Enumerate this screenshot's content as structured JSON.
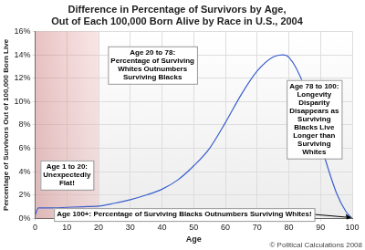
{
  "chart_data": {
    "type": "line",
    "title": [
      "Difference in Percentage of Survivors by Age,",
      "Out of Each 100,000 Born Alive by Race in U.S., 2004"
    ],
    "x_label": "Age",
    "y_label": "Percentage of Survivors Out of 100,000 Born Live",
    "x": [
      0,
      1,
      5,
      10,
      15,
      20,
      25,
      30,
      35,
      40,
      45,
      50,
      55,
      60,
      65,
      70,
      75,
      78,
      80,
      85,
      90,
      95,
      98,
      100
    ],
    "values": [
      0.3,
      0.9,
      0.9,
      0.95,
      1.0,
      1.05,
      1.3,
      1.6,
      2.0,
      2.5,
      3.3,
      4.5,
      6.0,
      8.2,
      10.6,
      12.6,
      13.8,
      14.0,
      13.8,
      11.2,
      6.4,
      2.2,
      0.6,
      0.0
    ],
    "color": "#3a5fcd",
    "marker": "none",
    "line_style": "solid",
    "xlim": [
      0,
      100
    ],
    "xticks": [
      0,
      10,
      20,
      30,
      40,
      50,
      60,
      70,
      80,
      90,
      100
    ],
    "ylim": [
      0,
      16
    ],
    "yticks": [
      {
        "value": 0,
        "label": "0%"
      },
      {
        "value": 2,
        "label": "2%"
      },
      {
        "value": 4,
        "label": "4%"
      },
      {
        "value": 6,
        "label": "6%"
      },
      {
        "value": 8,
        "label": "8%"
      },
      {
        "value": 10,
        "label": "10%"
      },
      {
        "value": 12,
        "label": "12%"
      },
      {
        "value": 14,
        "label": "14%"
      },
      {
        "value": 16,
        "label": "16%"
      }
    ],
    "grid": true,
    "highlight_x": [
      0,
      20
    ],
    "annotations": [
      {
        "text": [
          "Age 1 to 20:",
          "Unexpectedly",
          "Flat!"
        ]
      },
      {
        "text": [
          "Age 20 to 78:",
          "Percentage of Surviving",
          "Whites Outnumbers",
          "Surviving Blacks"
        ]
      },
      {
        "text": [
          "Age 78 to 100:",
          "Longevity",
          "Disparity",
          "Disappears as",
          "Surviving",
          "Blacks Live",
          "Longer than",
          "Surviving",
          "Whites"
        ]
      },
      {
        "text": [
          "Age 100+: Percentage of Surviving Blacks Outnumbers Surviving Whites!"
        ]
      }
    ],
    "credit": "© Political Calculations 2008"
  }
}
